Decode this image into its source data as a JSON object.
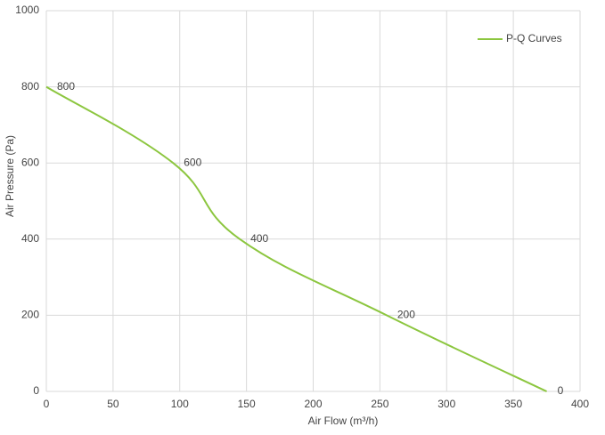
{
  "chart_data": {
    "type": "line",
    "x_label": "Air Flow  (m³/h)",
    "y_label": "Air Pressure  (Pa)",
    "x": [
      0,
      95,
      145,
      255,
      375
    ],
    "series": [
      {
        "name": "P-Q Curves",
        "color": "#8cc63f",
        "values": [
          800,
          600,
          400,
          200,
          0
        ]
      }
    ],
    "xlim": [
      0,
      400
    ],
    "xticks": [
      0,
      50,
      100,
      150,
      200,
      250,
      300,
      350,
      400
    ],
    "ylim": [
      0,
      1000
    ],
    "yticks": [
      0,
      200,
      400,
      600,
      800,
      1000
    ],
    "grid": true,
    "legend": "upper right",
    "data_labels": true
  }
}
